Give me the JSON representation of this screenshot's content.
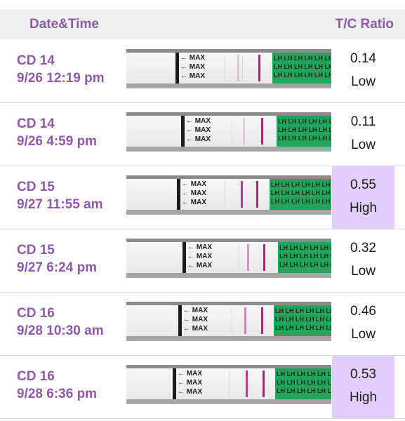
{
  "header": {
    "date_label": "Date&Time",
    "ratio_label": "T/C Ratio"
  },
  "strip": {
    "max_label": "MAX",
    "lh_text": "LH LH LH LH LH LH"
  },
  "colors": {
    "accent": "#8e5aa8",
    "high_bg": "#e2cffb",
    "strip_green": "#24a35c",
    "line_color": "#b03f86"
  },
  "rows": [
    {
      "cycle_day": "CD 14",
      "datetime": "9/26 12:19 pm",
      "ratio": "0.14",
      "level": "Low"
    },
    {
      "cycle_day": "CD 14",
      "datetime": "9/26 4:59 pm",
      "ratio": "0.11",
      "level": "Low"
    },
    {
      "cycle_day": "CD 15",
      "datetime": "9/27 11:55 am",
      "ratio": "0.55",
      "level": "High"
    },
    {
      "cycle_day": "CD 15",
      "datetime": "9/27 6:24 pm",
      "ratio": "0.32",
      "level": "Low"
    },
    {
      "cycle_day": "CD 16",
      "datetime": "9/28 10:30 am",
      "ratio": "0.46",
      "level": "Low"
    },
    {
      "cycle_day": "CD 16",
      "datetime": "9/28 6:36 pm",
      "ratio": "0.53",
      "level": "High"
    }
  ]
}
